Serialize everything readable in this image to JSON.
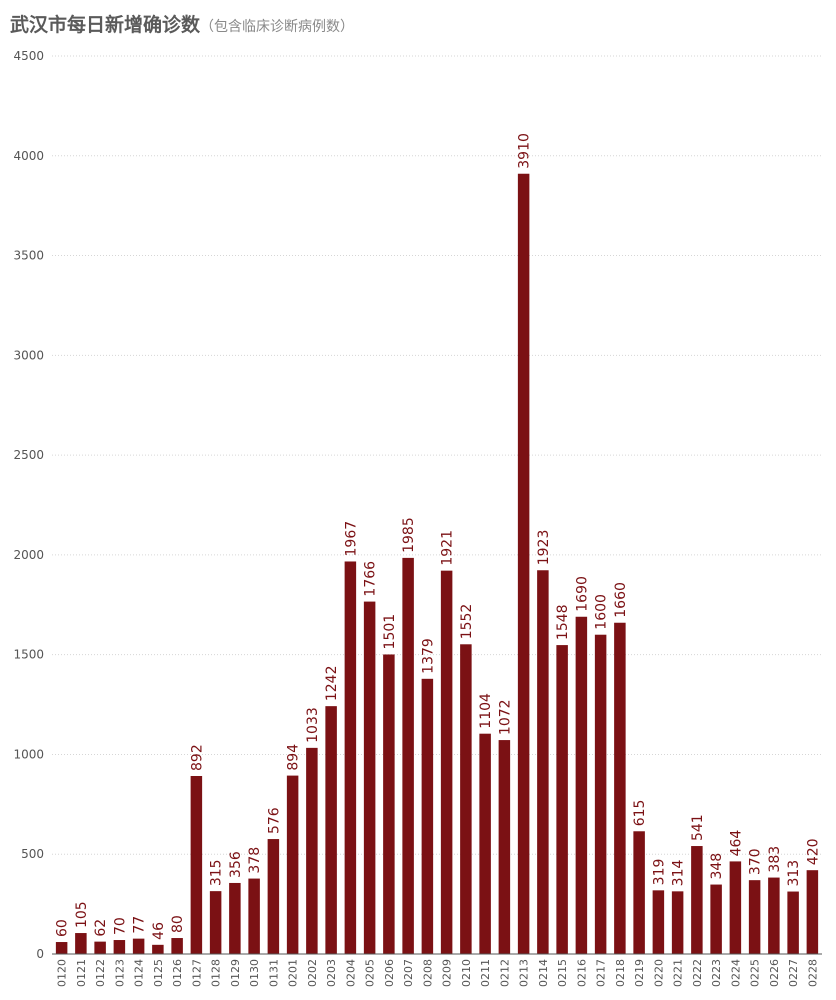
{
  "title": "武汉市每日新增确诊数",
  "subtitle": "（包含临床诊断病例数）",
  "colors": {
    "bar": "#7b1114",
    "grid": "#d6d6d6",
    "axis": "#555555",
    "title": "#5a5a5a"
  },
  "chart_data": {
    "type": "bar",
    "title": "武汉市每日新增确诊数",
    "subtitle": "（包含临床诊断病例数）",
    "ylim": [
      0,
      4500
    ],
    "yticks": [
      0,
      500,
      1000,
      1500,
      2000,
      2500,
      3000,
      3500,
      4000,
      4500
    ],
    "grid": true,
    "categories": [
      "0120",
      "0121",
      "0122",
      "0123",
      "0124",
      "0125",
      "0126",
      "0127",
      "0128",
      "0129",
      "0130",
      "0131",
      "0201",
      "0202",
      "0203",
      "0204",
      "0205",
      "0206",
      "0207",
      "0208",
      "0209",
      "0210",
      "0211",
      "0212",
      "0213",
      "0214",
      "0215",
      "0216",
      "0217",
      "0218",
      "0219",
      "0220",
      "0221",
      "0222",
      "0223",
      "0224",
      "0225",
      "0226",
      "0227",
      "0228"
    ],
    "values": [
      60,
      105,
      62,
      70,
      77,
      46,
      80,
      892,
      315,
      356,
      378,
      576,
      894,
      1033,
      1242,
      1967,
      1766,
      1501,
      1985,
      1379,
      1921,
      1552,
      1104,
      1072,
      3910,
      1923,
      1548,
      1690,
      1600,
      1660,
      615,
      319,
      314,
      541,
      348,
      464,
      370,
      383,
      313,
      420
    ]
  }
}
